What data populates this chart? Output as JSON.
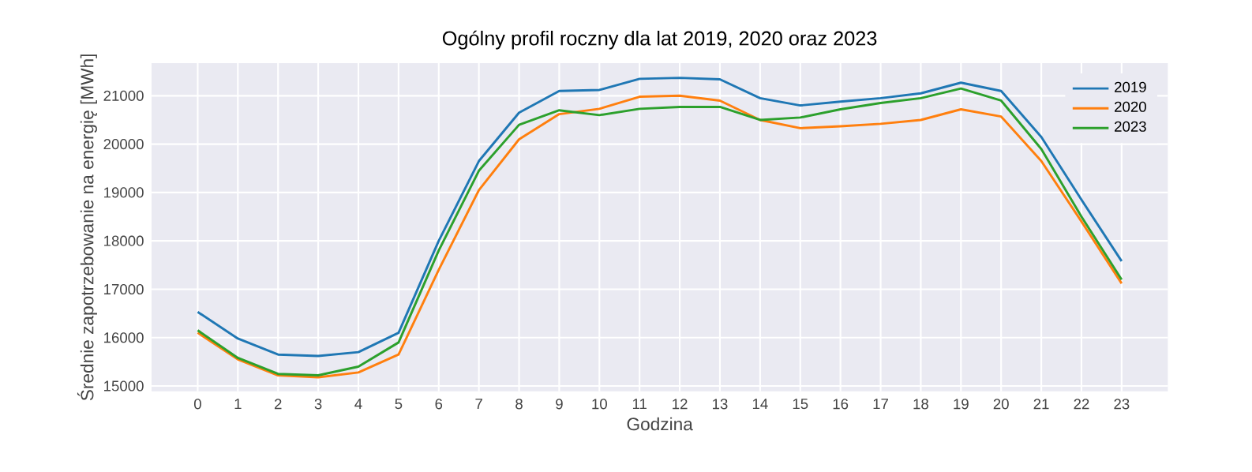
{
  "chart_data": {
    "type": "line",
    "title": "Ogólny profil roczny dla lat 2019, 2020 oraz 2023",
    "xlabel": "Godzina",
    "ylabel": "Średnie zapotrzebowanie na energię [MWh]",
    "x": [
      0,
      1,
      2,
      3,
      4,
      5,
      6,
      7,
      8,
      9,
      10,
      11,
      12,
      13,
      14,
      15,
      16,
      17,
      18,
      19,
      20,
      21,
      22,
      23
    ],
    "series": [
      {
        "name": "2019",
        "color": "#1f77b4",
        "values": [
          16530,
          15980,
          15650,
          15620,
          15700,
          16100,
          18000,
          19650,
          20650,
          21100,
          21120,
          21350,
          21370,
          21340,
          20950,
          20800,
          20880,
          20950,
          21050,
          21270,
          21100,
          20150,
          18850,
          17580
        ]
      },
      {
        "name": "2020",
        "color": "#ff7f0e",
        "values": [
          16100,
          15550,
          15220,
          15180,
          15280,
          15650,
          17400,
          19050,
          20100,
          20620,
          20730,
          20980,
          21000,
          20900,
          20500,
          20330,
          20370,
          20420,
          20500,
          20720,
          20570,
          19650,
          18400,
          17120
        ]
      },
      {
        "name": "2023",
        "color": "#2ca02c",
        "values": [
          16150,
          15580,
          15250,
          15220,
          15400,
          15900,
          17800,
          19450,
          20400,
          20700,
          20600,
          20730,
          20770,
          20770,
          20500,
          20550,
          20720,
          20850,
          20950,
          21150,
          20900,
          19900,
          18500,
          17200
        ]
      }
    ],
    "xlim": [
      -1.15,
      24.15
    ],
    "ylim": [
      14890,
      21675
    ],
    "xticks": [
      0,
      1,
      2,
      3,
      4,
      5,
      6,
      7,
      8,
      9,
      10,
      11,
      12,
      13,
      14,
      15,
      16,
      17,
      18,
      19,
      20,
      21,
      22,
      23
    ],
    "yticks": [
      15000,
      16000,
      17000,
      18000,
      19000,
      20000,
      21000
    ],
    "grid": true,
    "legend": "top right",
    "marker": "none",
    "line_style": "solid"
  }
}
